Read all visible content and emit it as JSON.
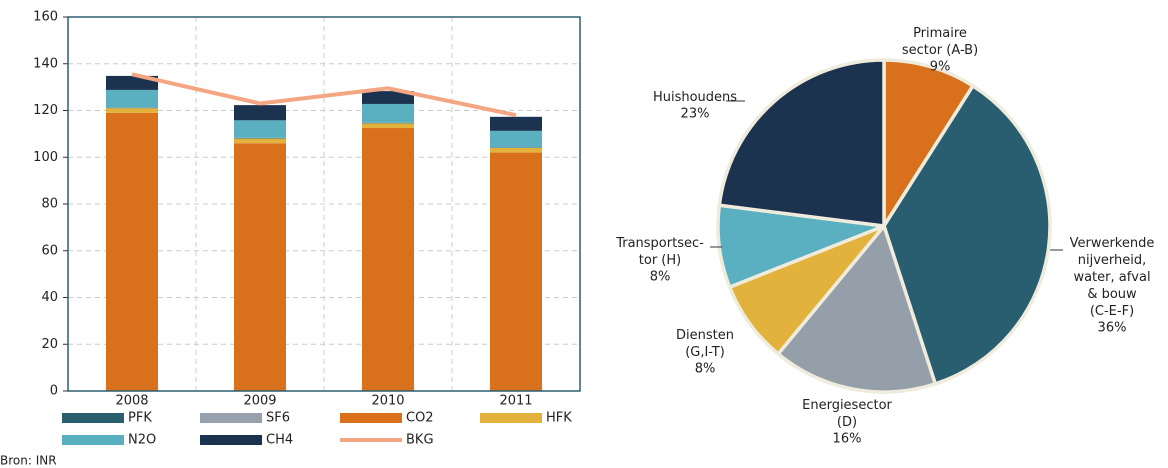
{
  "chart_data": [
    {
      "type": "bar",
      "stacked": true,
      "categories": [
        "2008",
        "2009",
        "2010",
        "2011"
      ],
      "ylim": [
        0,
        160
      ],
      "yticks": [
        0,
        20,
        40,
        60,
        80,
        100,
        120,
        140,
        160
      ],
      "grid": true,
      "series": [
        {
          "name": "PFK",
          "color": "#2a5f6e",
          "values": [
            0.2,
            0.2,
            0.2,
            0.2
          ]
        },
        {
          "name": "SF6",
          "color": "#97a1ab",
          "values": [
            0.1,
            0.1,
            0.1,
            0.1
          ]
        },
        {
          "name": "CO2",
          "color": "#d9711c",
          "values": [
            119,
            106,
            112.5,
            102
          ]
        },
        {
          "name": "HFK",
          "color": "#e3b23c",
          "values": [
            2,
            2,
            2,
            2
          ]
        },
        {
          "name": "N2O",
          "color": "#5ab0c0",
          "values": [
            7.5,
            7.5,
            8,
            7
          ]
        },
        {
          "name": "CH4",
          "color": "#1c3350",
          "values": [
            6,
            6.5,
            5.5,
            6
          ]
        },
        {
          "name": "BKG",
          "color": "#f4a582",
          "type": "line",
          "values": [
            135.5,
            123,
            129.5,
            118
          ]
        }
      ]
    },
    {
      "type": "pie",
      "categories": [
        "Primaire\nsector (A-B)",
        "Verwerkende\nnijverheid,\nwater, afval\n& bouw\n(C-E-F)",
        "Energiesector\n(D)",
        "Diensten\n(G,I-T)",
        "Transportsec-\ntor (H)",
        "Huishoudens"
      ],
      "values": [
        9,
        36,
        16,
        8,
        8,
        23
      ],
      "value_labels": [
        "9%",
        "36%",
        "16%",
        "8%",
        "8%",
        "23%"
      ],
      "colors": [
        "#d9711c",
        "#285e70",
        "#959fa9",
        "#e3b23c",
        "#5ab0c0",
        "#1c3350"
      ]
    }
  ],
  "source": "Bron: INR"
}
